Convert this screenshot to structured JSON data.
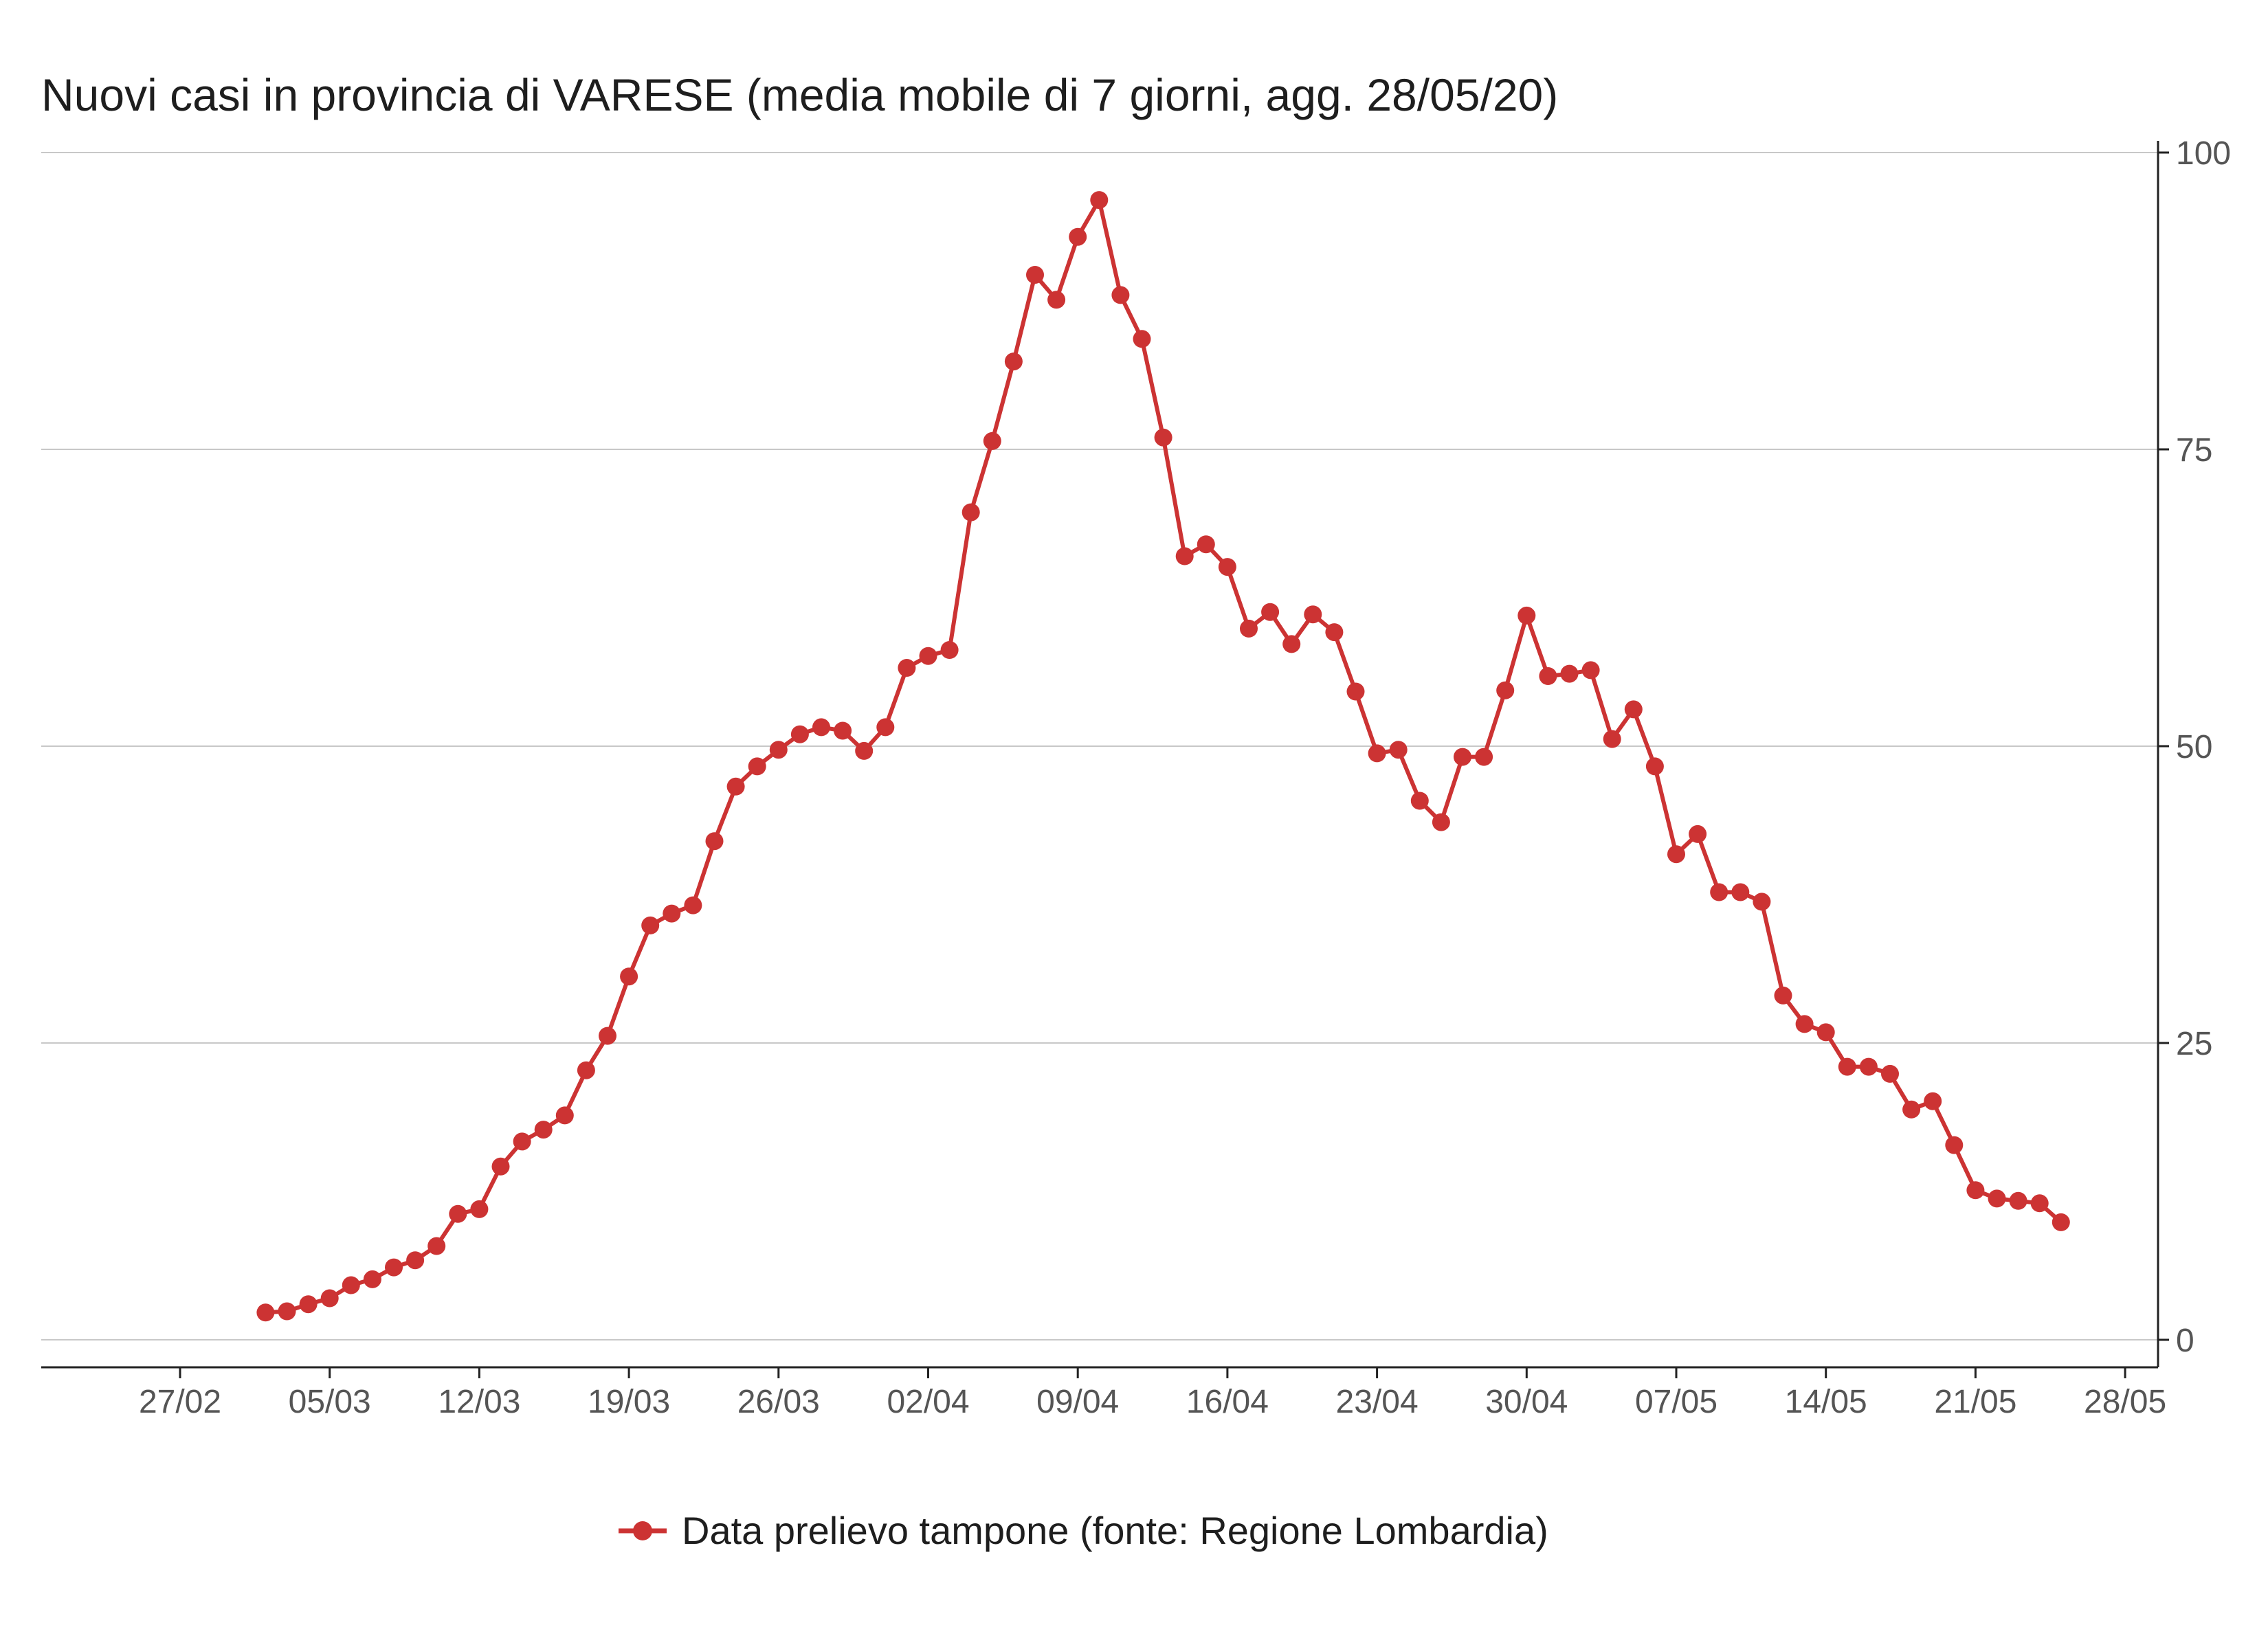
{
  "chart_data": {
    "type": "line",
    "title": "Nuovi casi in provincia di VARESE (media mobile di 7 giorni, agg. 28/05/20)",
    "xlabel": "",
    "ylabel": "",
    "x_tick_labels": [
      "27/02",
      "05/03",
      "12/03",
      "19/03",
      "26/03",
      "02/04",
      "09/04",
      "16/04",
      "23/04",
      "30/04",
      "07/05",
      "14/05",
      "21/05",
      "28/05"
    ],
    "y_ticks": [
      0,
      25,
      50,
      75,
      100
    ],
    "ylim": [
      -2.3,
      102
    ],
    "y_axis_position": "right",
    "grid": "horizontal",
    "legend_position": "bottom",
    "color": "#cc3333",
    "series": [
      {
        "name": "Data prelievo tampone (fonte: Regione Lombardia)",
        "start_date": "2020-03-02",
        "values": [
          2.3,
          2.4,
          3.0,
          3.5,
          4.6,
          5.1,
          6.1,
          6.7,
          7.9,
          10.6,
          11.0,
          14.6,
          16.7,
          17.7,
          18.9,
          22.7,
          25.6,
          30.6,
          34.9,
          35.9,
          36.6,
          42.0,
          46.6,
          48.3,
          49.7,
          51.0,
          51.6,
          51.3,
          49.6,
          51.6,
          56.6,
          57.6,
          58.1,
          69.7,
          75.7,
          82.4,
          89.7,
          87.6,
          92.9,
          96.0,
          88.0,
          84.3,
          76.0,
          66.0,
          67.0,
          65.1,
          59.9,
          61.3,
          58.6,
          61.1,
          59.6,
          54.6,
          49.4,
          49.7,
          45.4,
          43.6,
          49.1,
          49.1,
          54.7,
          61.0,
          55.9,
          56.1,
          56.4,
          50.6,
          53.1,
          48.3,
          40.9,
          42.6,
          37.7,
          37.7,
          36.9,
          29.0,
          26.6,
          25.9,
          23.0,
          23.0,
          22.4,
          19.4,
          20.1,
          16.4,
          12.6,
          11.9,
          11.7,
          11.5,
          9.9
        ]
      }
    ]
  }
}
